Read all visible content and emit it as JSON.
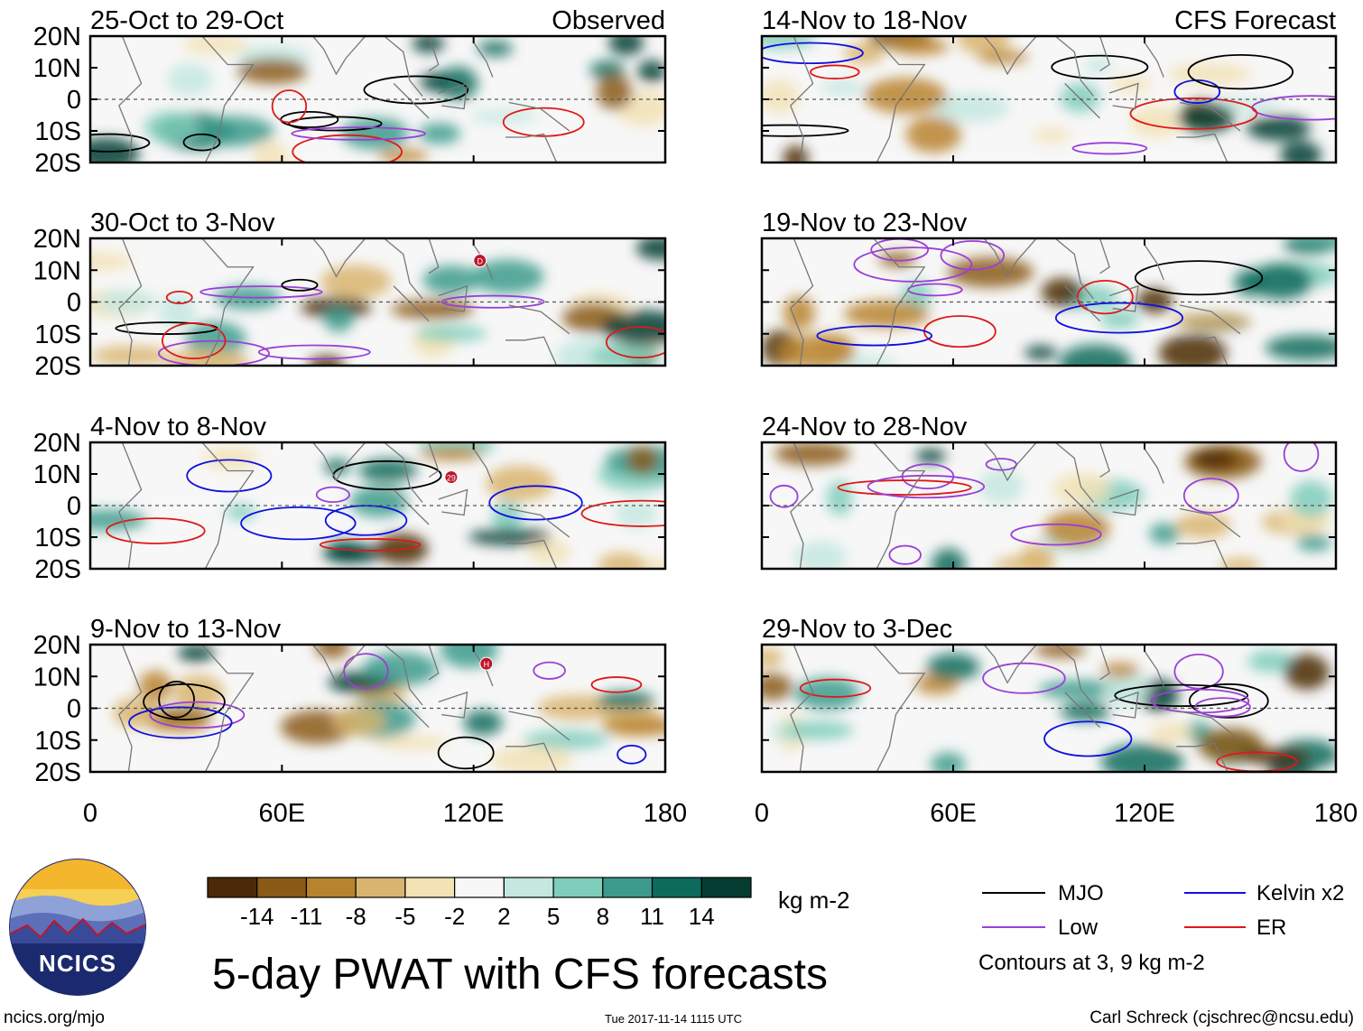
{
  "chart_data": {
    "type": "heatmap",
    "title": "5-day PWAT with CFS forecasts",
    "variable": "PWAT anomaly",
    "units": "kg m-2",
    "x_ticks": [
      "0",
      "60E",
      "120E",
      "180"
    ],
    "y_ticks": [
      "20N",
      "10N",
      "0",
      "10S",
      "20S"
    ],
    "xlim": [
      0,
      180
    ],
    "ylim": [
      -20,
      20
    ],
    "panel_groups": [
      {
        "label": "Observed",
        "column": "left"
      },
      {
        "label": "CFS Forecast",
        "column": "right"
      }
    ],
    "panels": [
      {
        "title": "25-Oct to 29-Oct",
        "column": "left",
        "row": 0,
        "source": "Observed"
      },
      {
        "title": "30-Oct to 3-Nov",
        "column": "left",
        "row": 1,
        "source": "Observed"
      },
      {
        "title": "4-Nov to 8-Nov",
        "column": "left",
        "row": 2,
        "source": "Observed"
      },
      {
        "title": "9-Nov to 13-Nov",
        "column": "left",
        "row": 3,
        "source": "Observed"
      },
      {
        "title": "14-Nov to 18-Nov",
        "column": "right",
        "row": 0,
        "source": "CFS Forecast"
      },
      {
        "title": "19-Nov to 23-Nov",
        "column": "right",
        "row": 1,
        "source": "CFS Forecast"
      },
      {
        "title": "24-Nov to 28-Nov",
        "column": "right",
        "row": 2,
        "source": "CFS Forecast"
      },
      {
        "title": "29-Nov to 3-Dec",
        "column": "right",
        "row": 3,
        "source": "CFS Forecast"
      }
    ],
    "colorbar": {
      "labels": [
        "-14",
        "-11",
        "-8",
        "-5",
        "-2",
        "2",
        "5",
        "8",
        "11",
        "14"
      ],
      "colors": [
        "#4a2a07",
        "#8a5a16",
        "#b8832e",
        "#d9b46e",
        "#f2e2b4",
        "#f7f7f7",
        "#c4e8df",
        "#7fcdbb",
        "#3c9b8c",
        "#0d6b5c",
        "#053c32"
      ],
      "units": "kg m-2"
    },
    "legend": [
      {
        "name": "MJO",
        "color": "#000000"
      },
      {
        "name": "Kelvin x2",
        "color": "#1010e0"
      },
      {
        "name": "Low",
        "color": "#9a3fd6"
      },
      {
        "name": "ER",
        "color": "#e01818"
      }
    ],
    "contour_note": "Contours at 3, 9 kg m-2",
    "storm_markers": [
      {
        "panel": 1,
        "label": "D",
        "lon": 122,
        "lat": 13
      },
      {
        "panel": 2,
        "label": "29",
        "lon": 113,
        "lat": 9
      },
      {
        "panel": 3,
        "label": "H",
        "lon": 124,
        "lat": 14
      }
    ]
  },
  "branding": {
    "logo_text": "NCICS",
    "website": "ncics.org/mjo",
    "timestamp": "Tue 2017-11-14 1115 UTC",
    "author": "Carl Schreck (cjschrec@ncsu.edu)"
  }
}
